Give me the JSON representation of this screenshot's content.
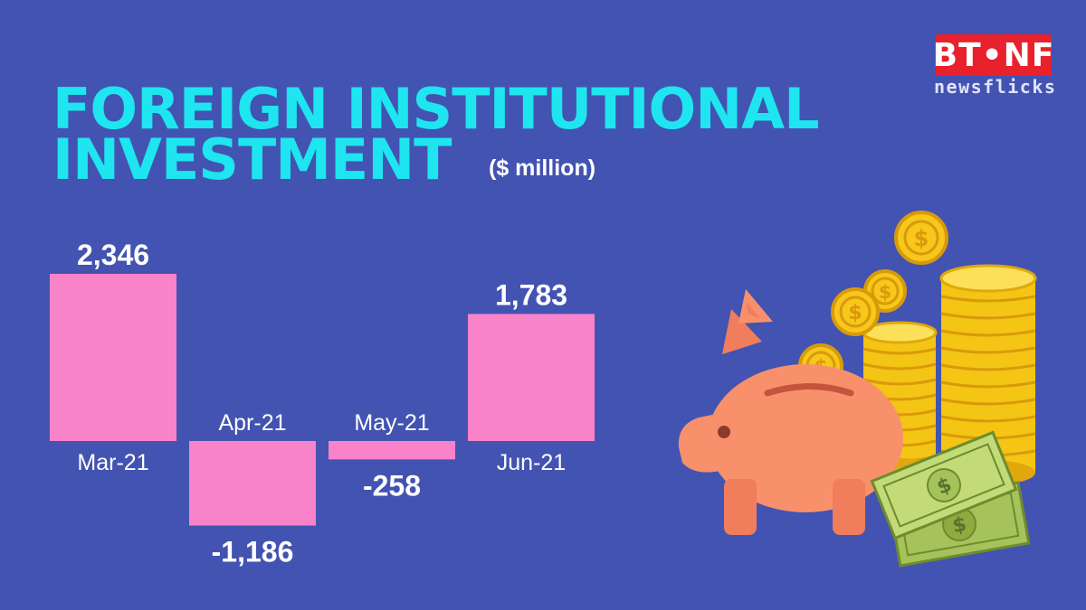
{
  "title_line1": "FOREIGN INSTITUTIONAL",
  "title_line2": "INVESTMENT",
  "unit": "($ million)",
  "brand": {
    "mark": "BT•NF",
    "sub": "newsflicks"
  },
  "colors": {
    "background": "#4353b1",
    "title": "#1ee5ef",
    "bar": "#f983c9",
    "label": "#ffffff",
    "logo": "#e8212c"
  },
  "chart_data": {
    "type": "bar",
    "title": "FOREIGN INSTITUTIONAL INVESTMENT",
    "subtitle": "($ million)",
    "categories": [
      "Mar-21",
      "Apr-21",
      "May-21",
      "Jun-21"
    ],
    "values": [
      2346,
      -1186,
      -258,
      1783
    ],
    "value_labels": [
      "2,346",
      "-1,186",
      "-258",
      "1,783"
    ],
    "grid": false,
    "legend": "none"
  },
  "illustration": {
    "icons": [
      "piggy-bank-icon",
      "coin-stack-icon",
      "dollar-coin-icon",
      "banknote-icon"
    ],
    "coin_symbol": "$"
  }
}
